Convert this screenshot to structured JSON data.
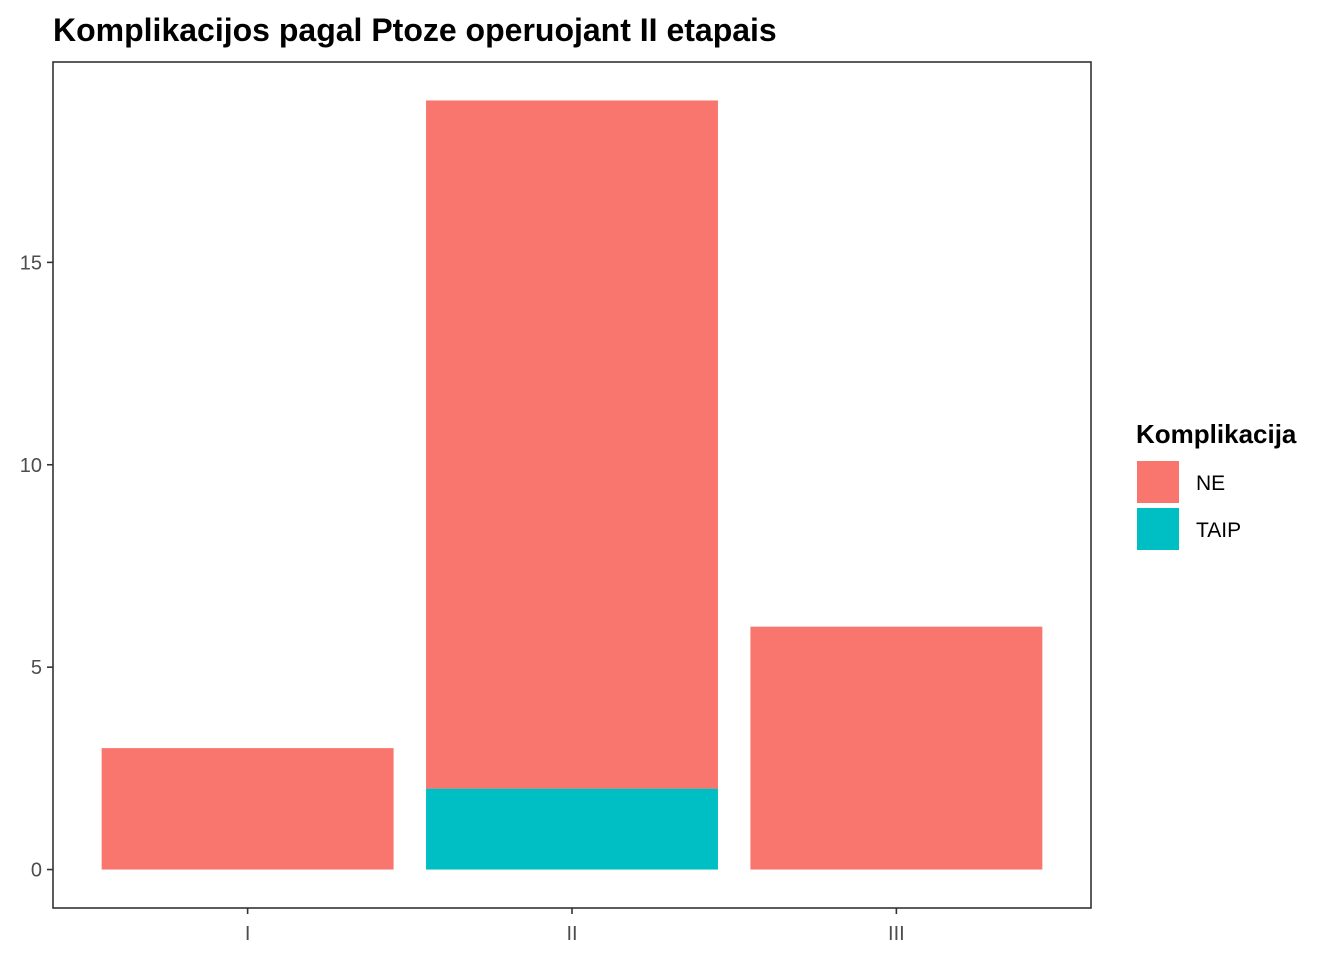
{
  "chart_data": {
    "type": "bar",
    "stacked": true,
    "title": "Komplikacijos pagal Ptoze operuojant II etapais",
    "xlabel": "",
    "ylabel": "",
    "categories": [
      "I",
      "II",
      "III"
    ],
    "series": [
      {
        "name": "NE",
        "values": [
          3,
          17,
          6
        ],
        "color": "#F8766D"
      },
      {
        "name": "TAIP",
        "values": [
          0,
          2,
          0
        ],
        "color": "#00BFC4"
      }
    ],
    "ylim": [
      -0.95,
      19.95
    ],
    "yticks": [
      0,
      5,
      10,
      15
    ],
    "yticklabels": [
      "0",
      "5",
      "10",
      "15"
    ],
    "grid": false,
    "legend": {
      "title": "Komplikacija",
      "position": "right"
    }
  }
}
